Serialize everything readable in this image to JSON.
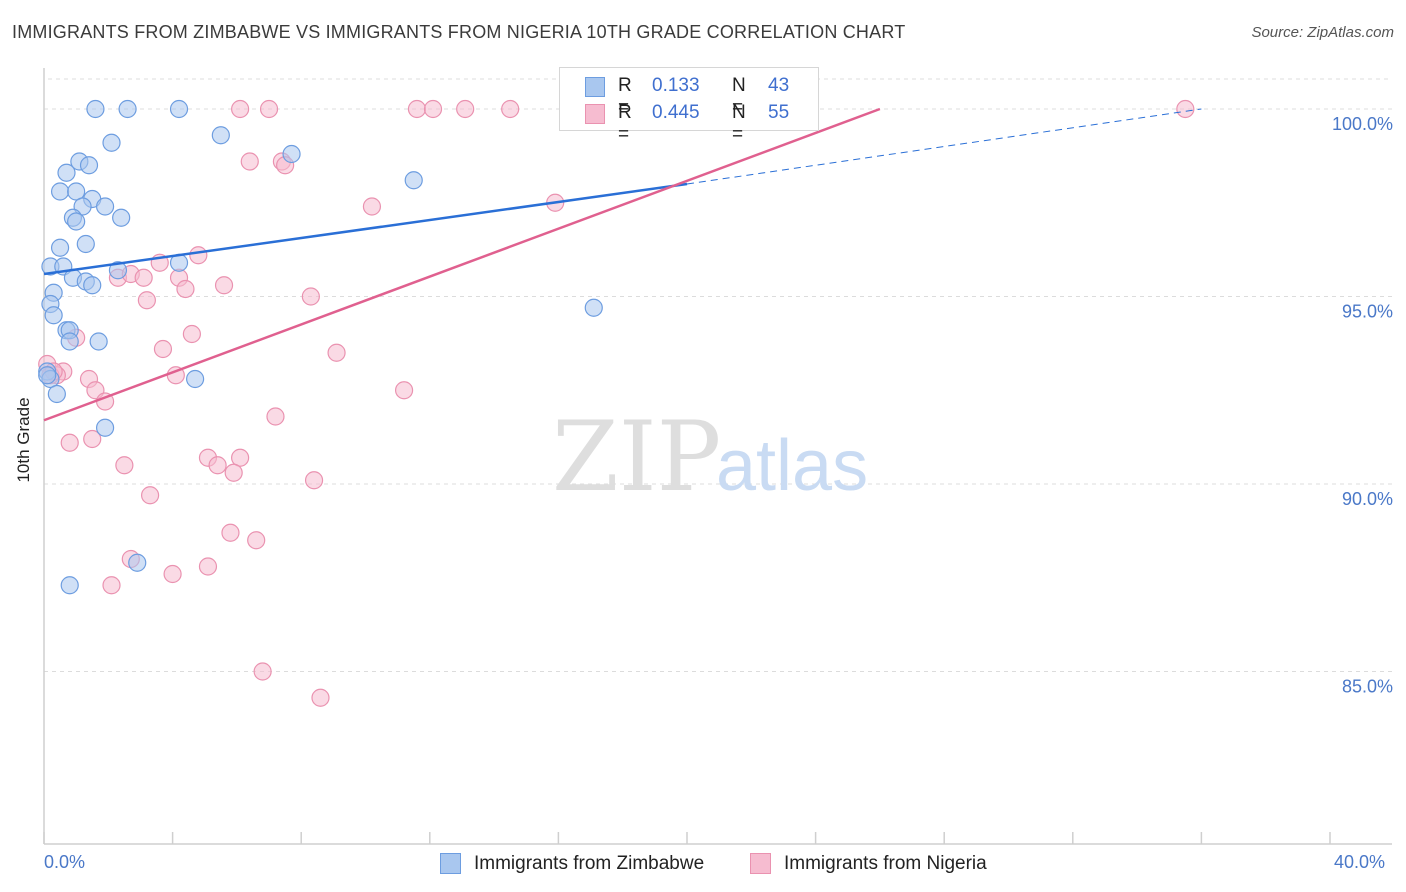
{
  "header": {
    "title": "IMMIGRANTS FROM ZIMBABWE VS IMMIGRANTS FROM NIGERIA 10TH GRADE CORRELATION CHART",
    "source": "Source: ZipAtlas.com"
  },
  "watermark": {
    "zip": "ZIP",
    "atlas": "atlas"
  },
  "legend": {
    "zimbabwe": {
      "r_label": "R =",
      "r_value": "0.133",
      "n_label": "N =",
      "n_value": "43"
    },
    "nigeria": {
      "r_label": "R =",
      "r_value": "0.445",
      "n_label": "N =",
      "n_value": "55"
    }
  },
  "colors": {
    "zimbabwe_fill": "#a9c7ef",
    "zimbabwe_stroke": "#6d9de0",
    "zimbabwe_line": "#2a6fd6",
    "nigeria_fill": "#f6bcd0",
    "nigeria_stroke": "#ea92b0",
    "nigeria_line": "#e0608f",
    "tick_text": "#4a78c8",
    "grid": "#dcdcdc"
  },
  "chart_data": {
    "type": "scatter",
    "title": "IMMIGRANTS FROM ZIMBABWE VS IMMIGRANTS FROM NIGERIA 10TH GRADE CORRELATION CHART",
    "xlabel": "",
    "ylabel": "10th Grade",
    "xlim": [
      0,
      40
    ],
    "ylim": [
      80.4,
      101.2
    ],
    "x_tick_labels": [
      "0.0%",
      "40.0%"
    ],
    "y_ticks": [
      85,
      90,
      95,
      100
    ],
    "y_tick_labels": [
      "85.0%",
      "90.0%",
      "95.0%",
      "100.0%"
    ],
    "grid": true,
    "legend_position": "bottom",
    "series": [
      {
        "name": "Immigrants from Zimbabwe",
        "color": "#a9c7ef",
        "trend": {
          "x0": 0,
          "y0": 95.6,
          "x1": 20,
          "y1": 98.0,
          "dashed_to_x": 36,
          "dashed_to_y": 100.0
        },
        "points": [
          [
            1.6,
            100.0
          ],
          [
            2.6,
            100.0
          ],
          [
            4.2,
            100.0
          ],
          [
            2.1,
            99.1
          ],
          [
            5.5,
            99.3
          ],
          [
            7.7,
            98.8
          ],
          [
            1.1,
            98.6
          ],
          [
            1.4,
            98.5
          ],
          [
            0.7,
            98.3
          ],
          [
            0.5,
            97.8
          ],
          [
            1.0,
            97.8
          ],
          [
            1.5,
            97.6
          ],
          [
            11.5,
            98.1
          ],
          [
            1.2,
            97.4
          ],
          [
            1.9,
            97.4
          ],
          [
            0.9,
            97.1
          ],
          [
            1.0,
            97.0
          ],
          [
            2.4,
            97.1
          ],
          [
            0.5,
            96.3
          ],
          [
            1.3,
            96.4
          ],
          [
            0.2,
            95.8
          ],
          [
            0.6,
            95.8
          ],
          [
            2.3,
            95.7
          ],
          [
            4.2,
            95.9
          ],
          [
            0.9,
            95.5
          ],
          [
            1.3,
            95.4
          ],
          [
            1.5,
            95.3
          ],
          [
            0.3,
            95.1
          ],
          [
            0.2,
            94.8
          ],
          [
            0.3,
            94.5
          ],
          [
            0.7,
            94.1
          ],
          [
            0.8,
            94.1
          ],
          [
            0.8,
            93.8
          ],
          [
            1.7,
            93.8
          ],
          [
            17.1,
            94.7
          ],
          [
            0.1,
            93.0
          ],
          [
            0.2,
            92.8
          ],
          [
            4.7,
            92.8
          ],
          [
            0.4,
            92.4
          ],
          [
            1.9,
            91.5
          ],
          [
            0.8,
            87.3
          ],
          [
            2.9,
            87.9
          ],
          [
            0.1,
            92.9
          ]
        ]
      },
      {
        "name": "Immigrants from Nigeria",
        "color": "#f6bcd0",
        "trend": {
          "x0": 0,
          "y0": 91.7,
          "x1": 26,
          "y1": 100.0
        },
        "points": [
          [
            6.1,
            100.0
          ],
          [
            7.0,
            100.0
          ],
          [
            11.6,
            100.0
          ],
          [
            12.1,
            100.0
          ],
          [
            13.1,
            100.0
          ],
          [
            14.5,
            100.0
          ],
          [
            16.7,
            100.0
          ],
          [
            35.5,
            100.0
          ],
          [
            6.4,
            98.6
          ],
          [
            7.4,
            98.6
          ],
          [
            7.5,
            98.5
          ],
          [
            10.2,
            97.4
          ],
          [
            15.9,
            97.5
          ],
          [
            4.8,
            96.1
          ],
          [
            3.6,
            95.9
          ],
          [
            2.3,
            95.5
          ],
          [
            2.7,
            95.6
          ],
          [
            3.1,
            95.5
          ],
          [
            4.2,
            95.5
          ],
          [
            5.6,
            95.3
          ],
          [
            4.4,
            95.2
          ],
          [
            8.3,
            95.0
          ],
          [
            3.2,
            94.9
          ],
          [
            4.6,
            94.0
          ],
          [
            1.0,
            93.9
          ],
          [
            3.7,
            93.6
          ],
          [
            9.1,
            93.5
          ],
          [
            0.1,
            93.2
          ],
          [
            0.6,
            93.0
          ],
          [
            0.4,
            92.9
          ],
          [
            4.1,
            92.9
          ],
          [
            1.4,
            92.8
          ],
          [
            1.6,
            92.5
          ],
          [
            11.2,
            92.5
          ],
          [
            1.9,
            92.2
          ],
          [
            7.2,
            91.8
          ],
          [
            1.5,
            91.2
          ],
          [
            0.8,
            91.1
          ],
          [
            5.1,
            90.7
          ],
          [
            6.1,
            90.7
          ],
          [
            2.5,
            90.5
          ],
          [
            5.4,
            90.5
          ],
          [
            5.9,
            90.3
          ],
          [
            8.4,
            90.1
          ],
          [
            3.3,
            89.7
          ],
          [
            5.8,
            88.7
          ],
          [
            6.6,
            88.5
          ],
          [
            2.7,
            88.0
          ],
          [
            5.1,
            87.8
          ],
          [
            4.0,
            87.6
          ],
          [
            2.1,
            87.3
          ],
          [
            6.8,
            85.0
          ],
          [
            8.6,
            84.3
          ],
          [
            0.2,
            92.9
          ],
          [
            0.3,
            93.0
          ]
        ]
      }
    ]
  },
  "bottom_legend": {
    "zimbabwe_label": "Immigrants from Zimbabwe",
    "nigeria_label": "Immigrants from Nigeria"
  }
}
